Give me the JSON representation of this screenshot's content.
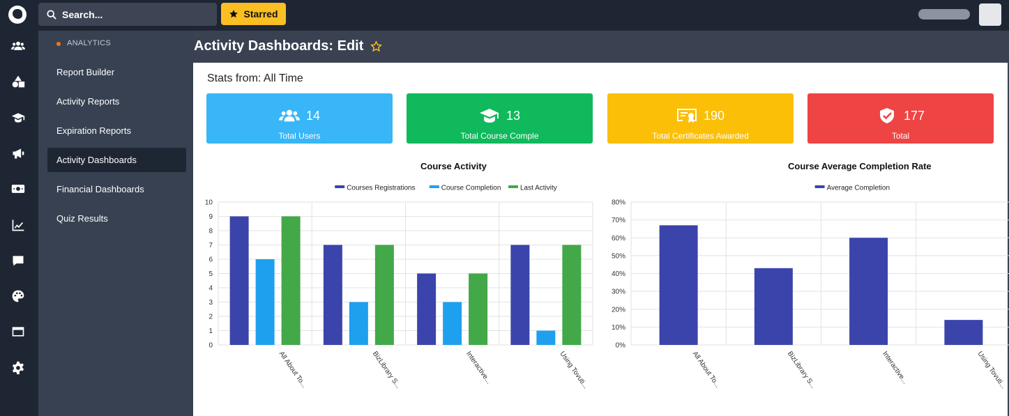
{
  "search": {
    "placeholder": "Search..."
  },
  "starred": {
    "label": "Starred"
  },
  "sidebar": {
    "section": "ANALYTICS",
    "items": [
      {
        "label": "Report Builder"
      },
      {
        "label": "Activity Reports"
      },
      {
        "label": "Expiration Reports"
      },
      {
        "label": "Activity Dashboards",
        "active": true
      },
      {
        "label": "Financial Dashboards"
      },
      {
        "label": "Quiz Results"
      }
    ]
  },
  "page": {
    "title": "Activity Dashboards: Edit"
  },
  "stats": {
    "label": "Stats from: All Time",
    "cards": [
      {
        "value": "14",
        "label": "Total Users",
        "color": "#38b6f7",
        "icon": "users-icon"
      },
      {
        "value": "13",
        "label": "Total Course Comple",
        "color": "#10b95c",
        "icon": "graduation-cap-icon"
      },
      {
        "value": "190",
        "label": "Total Certificates Awarded",
        "color": "#fbbf08",
        "icon": "certificate-icon"
      },
      {
        "value": "177",
        "label": "Total",
        "color": "#ef4444",
        "icon": "shield-check-icon"
      }
    ]
  },
  "chart_data": [
    {
      "type": "bar",
      "title": "Course Activity",
      "categories": [
        "All About To...",
        "BizLibrary S...",
        "Interactive...",
        "Using Tovuti..."
      ],
      "series": [
        {
          "name": "Courses Registrations",
          "color": "#3b44ab",
          "values": [
            9,
            7,
            5,
            7
          ]
        },
        {
          "name": "Course Completion",
          "color": "#1ea0ef",
          "values": [
            6,
            3,
            3,
            1
          ]
        },
        {
          "name": "Last Activity",
          "color": "#43a848",
          "values": [
            9,
            7,
            5,
            7
          ]
        }
      ],
      "ylim": [
        0,
        10
      ],
      "yticks": [
        "0",
        "1",
        "2",
        "3",
        "4",
        "5",
        "6",
        "7",
        "8",
        "9",
        "10"
      ],
      "legend": "top",
      "grid": true
    },
    {
      "type": "bar",
      "title": "Course Average Completion Rate",
      "categories": [
        "All About To...",
        "BizLibrary S...",
        "Interactive...",
        "Using Tovuti..."
      ],
      "series": [
        {
          "name": "Average Completion",
          "color": "#3b44ab",
          "values": [
            67,
            43,
            60,
            14
          ]
        }
      ],
      "ylim": [
        0,
        80
      ],
      "yticks": [
        "0%",
        "10%",
        "20%",
        "30%",
        "40%",
        "50%",
        "60%",
        "70%",
        "80%"
      ],
      "legend": "top",
      "grid": true
    }
  ]
}
